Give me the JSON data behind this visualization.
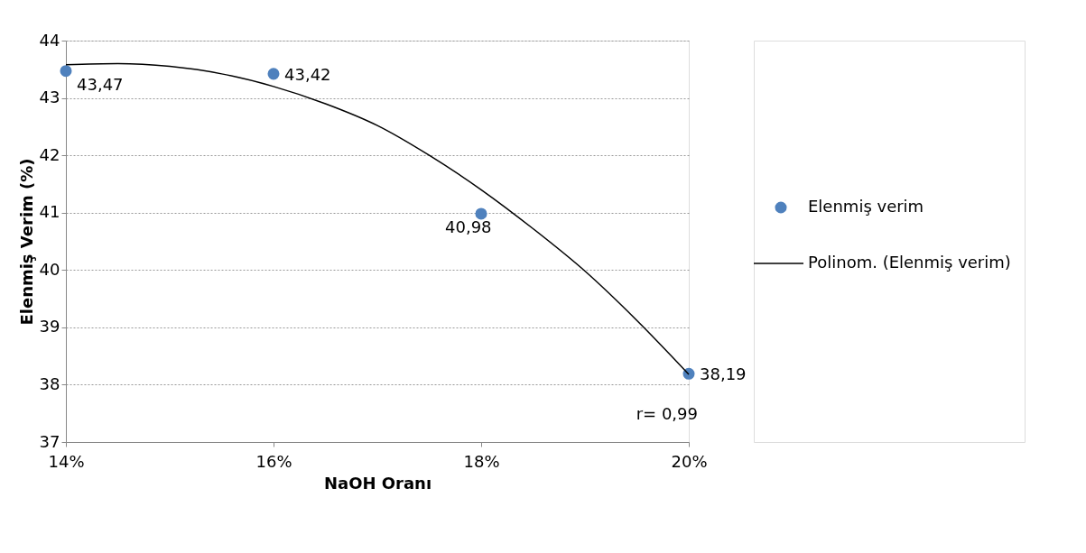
{
  "chart_data": {
    "type": "scatter",
    "xlabel": "NaOH Oranı",
    "ylabel": "Elenmiş Verim (%)",
    "x": [
      14,
      16,
      18,
      20
    ],
    "series": [
      {
        "name": "Elenmiş verim",
        "type": "scatter",
        "marker": "circle",
        "color": "#4f81bd",
        "values": [
          43.47,
          43.42,
          40.98,
          38.19
        ],
        "value_labels": [
          "43,47",
          "43,42",
          "40,98",
          "38,19"
        ]
      },
      {
        "name": "Polinom. (Elenmiş verim)",
        "type": "line",
        "marker": "none",
        "color": "#000000",
        "x": [
          14,
          14.5,
          15,
          15.5,
          16,
          16.5,
          17,
          17.5,
          18,
          18.5,
          19,
          19.5,
          20
        ],
        "values": [
          43.58,
          43.6,
          43.55,
          43.42,
          43.2,
          42.9,
          42.52,
          42.0,
          41.4,
          40.72,
          39.98,
          39.12,
          38.18
        ]
      }
    ],
    "xlim": [
      14,
      20
    ],
    "ylim": [
      37,
      44
    ],
    "xticks": [
      {
        "value": 14,
        "label": "14%"
      },
      {
        "value": 16,
        "label": "16%"
      },
      {
        "value": 18,
        "label": "18%"
      },
      {
        "value": 20,
        "label": "20%"
      }
    ],
    "yticks": [
      37,
      38,
      39,
      40,
      41,
      42,
      43,
      44
    ],
    "grid": "y",
    "legend": "right",
    "line_style": "solid",
    "annotations": [
      "r= 0,99"
    ]
  }
}
